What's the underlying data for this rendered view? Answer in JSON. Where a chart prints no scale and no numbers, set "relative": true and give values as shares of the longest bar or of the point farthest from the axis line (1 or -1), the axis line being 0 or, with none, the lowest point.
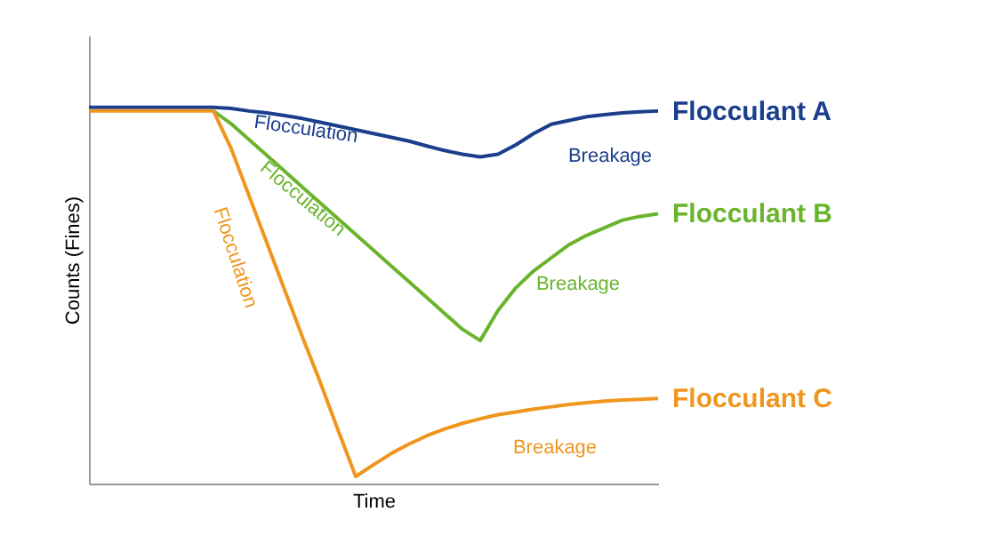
{
  "chart_data": {
    "type": "line",
    "relative": true,
    "xlabel": "Time",
    "ylabel": "Counts (Fines)",
    "legend": false,
    "line_style": "solid",
    "categories": [
      null,
      null,
      null,
      null,
      null,
      null,
      null,
      null,
      null,
      null,
      null,
      null,
      null,
      null,
      null,
      null,
      null,
      null,
      null,
      null,
      null,
      null,
      null,
      null,
      null,
      null,
      null,
      null,
      null,
      null,
      null,
      null,
      null
    ],
    "series": [
      {
        "name": "Flocculant A",
        "color": "#1a3e8c",
        "values": [
          1,
          1,
          1,
          1,
          1,
          1,
          1,
          1,
          0.997,
          0.99,
          0.985,
          0.978,
          0.97,
          0.96,
          0.95,
          0.94,
          0.93,
          0.92,
          0.91,
          0.897,
          0.885,
          0.875,
          0.868,
          0.875,
          0.9,
          0.93,
          0.955,
          0.965,
          0.975,
          0.98,
          0.985,
          0.988,
          0.99
        ]
      },
      {
        "name": "Flocculant B",
        "color": "#6ab42d",
        "values": [
          null,
          null,
          null,
          null,
          null,
          null,
          null,
          0.99,
          0.956,
          0.914,
          0.872,
          0.83,
          0.788,
          0.746,
          0.704,
          0.662,
          0.62,
          0.578,
          0.536,
          0.494,
          0.452,
          0.41,
          0.38,
          0.46,
          0.52,
          0.565,
          0.6,
          0.635,
          0.66,
          0.68,
          0.7,
          0.71,
          0.717
        ]
      },
      {
        "name": "Flocculant C",
        "color": "#f0961e",
        "values": [
          0.99,
          0.99,
          0.99,
          0.99,
          0.99,
          0.99,
          0.99,
          0.99,
          0.89,
          0.765,
          0.64,
          0.515,
          0.39,
          0.27,
          0.143,
          0.019,
          0.05,
          0.08,
          0.105,
          0.127,
          0.145,
          0.16,
          0.172,
          0.183,
          0.19,
          0.198,
          0.204,
          0.21,
          0.215,
          0.219,
          0.222,
          0.224,
          0.226
        ]
      }
    ],
    "annotations": [
      "Flocculation",
      "Breakage",
      "Flocculation",
      "Breakage",
      "Flocculation",
      "Breakage"
    ]
  }
}
